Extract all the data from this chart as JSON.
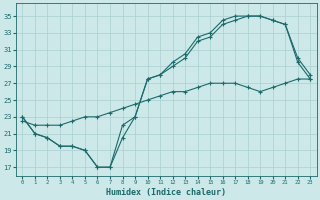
{
  "xlabel": "Humidex (Indice chaleur)",
  "bg_color": "#cde8e8",
  "line_color": "#1a6b6b",
  "grid_color": "#aacfcf",
  "xlim": [
    -0.5,
    23.5
  ],
  "ylim": [
    16,
    36.5
  ],
  "yticks": [
    17,
    19,
    21,
    23,
    25,
    27,
    29,
    31,
    33,
    35
  ],
  "xticks": [
    0,
    1,
    2,
    3,
    4,
    5,
    6,
    7,
    8,
    9,
    10,
    11,
    12,
    13,
    14,
    15,
    16,
    17,
    18,
    19,
    20,
    21,
    22,
    23
  ],
  "series": [
    {
      "x": [
        0,
        1,
        2,
        3,
        4,
        5,
        6,
        7,
        8,
        9,
        10,
        11,
        12,
        13,
        14,
        15,
        16,
        17,
        18,
        19,
        20,
        21,
        22,
        23
      ],
      "y": [
        23,
        21,
        20.5,
        19.5,
        19.5,
        19,
        17,
        17,
        20.5,
        23,
        27.5,
        28,
        29.5,
        30.5,
        32.5,
        33,
        34.5,
        35,
        35,
        35,
        34.5,
        34,
        30,
        28
      ]
    },
    {
      "x": [
        0,
        1,
        2,
        3,
        4,
        5,
        6,
        7,
        8,
        9,
        10,
        11,
        12,
        13,
        14,
        15,
        16,
        17,
        18,
        19,
        20,
        21,
        22,
        23
      ],
      "y": [
        23,
        21,
        20.5,
        19.5,
        19.5,
        19,
        17,
        17,
        22,
        23,
        27.5,
        28,
        29,
        30,
        32,
        32.5,
        34,
        34.5,
        35,
        35,
        34.5,
        34,
        29.5,
        27.5
      ]
    },
    {
      "x": [
        0,
        1,
        2,
        3,
        4,
        5,
        6,
        7,
        8,
        9,
        10,
        11,
        12,
        13,
        14,
        15,
        16,
        17,
        18,
        19,
        20,
        21,
        22,
        23
      ],
      "y": [
        22.5,
        22,
        22,
        22,
        22.5,
        23,
        23,
        23.5,
        24,
        24.5,
        25,
        25.5,
        26,
        26,
        26.5,
        27,
        27,
        27,
        26.5,
        26,
        26.5,
        27,
        27.5,
        27.5
      ]
    }
  ]
}
